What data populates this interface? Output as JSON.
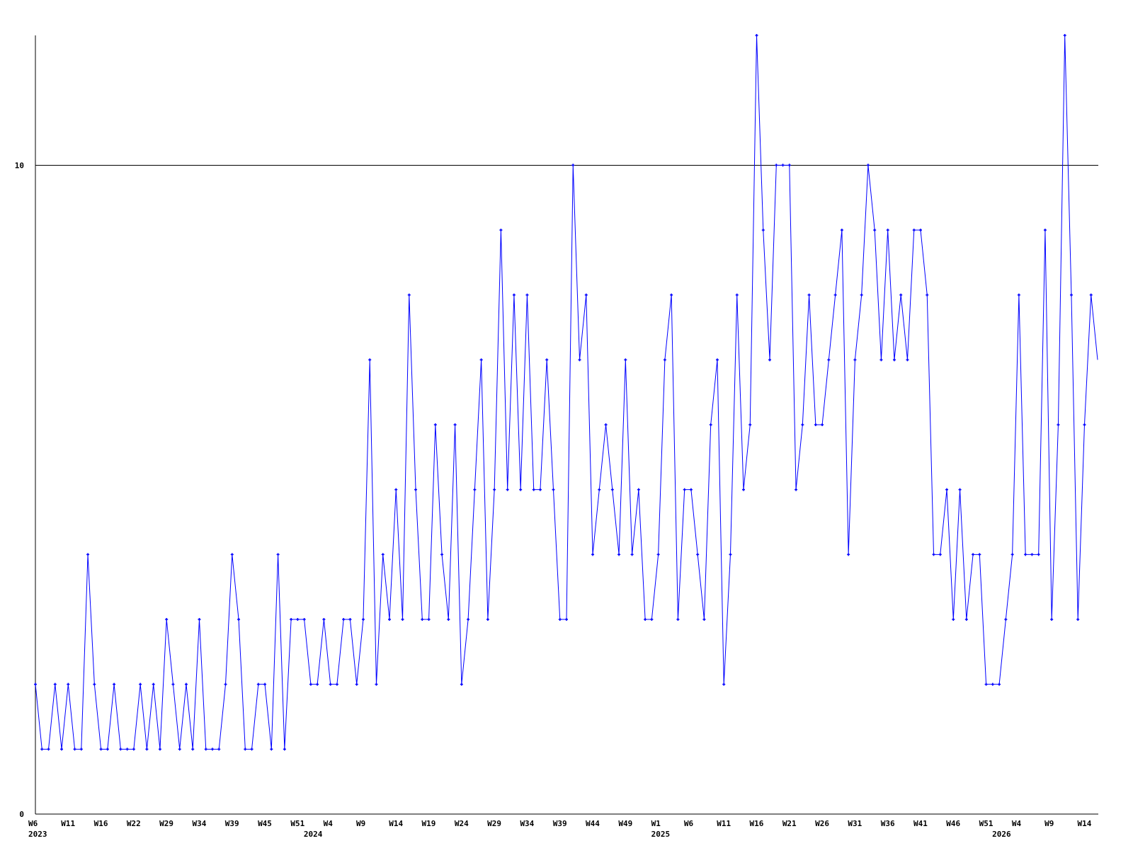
{
  "chart_data": {
    "type": "line",
    "title": "",
    "xlabel": "",
    "ylabel": "",
    "ylim": [
      0,
      12
    ],
    "y_ticks": [
      {
        "value": 0,
        "label": "0"
      },
      {
        "value": 10,
        "label": "10"
      }
    ],
    "reference_lines": [
      10
    ],
    "grid": false,
    "legend": "none",
    "colors": {
      "series": "#0000ff",
      "axis": "#000000"
    },
    "x_ticks": [
      {
        "index": 0,
        "label": "W6"
      },
      {
        "index": 5,
        "label": "W11"
      },
      {
        "index": 10,
        "label": "W16"
      },
      {
        "index": 15,
        "label": "W22"
      },
      {
        "index": 20,
        "label": "W29"
      },
      {
        "index": 25,
        "label": "W34"
      },
      {
        "index": 30,
        "label": "W39"
      },
      {
        "index": 35,
        "label": "W45"
      },
      {
        "index": 40,
        "label": "W51"
      },
      {
        "index": 45,
        "label": "W4"
      },
      {
        "index": 50,
        "label": "W9"
      },
      {
        "index": 55,
        "label": "W14"
      },
      {
        "index": 60,
        "label": "W19"
      },
      {
        "index": 65,
        "label": "W24"
      },
      {
        "index": 70,
        "label": "W29"
      },
      {
        "index": 75,
        "label": "W34"
      },
      {
        "index": 80,
        "label": "W39"
      },
      {
        "index": 85,
        "label": "W44"
      },
      {
        "index": 90,
        "label": "W49"
      },
      {
        "index": 95,
        "label": "W1"
      },
      {
        "index": 100,
        "label": "W6"
      },
      {
        "index": 105,
        "label": "W11"
      },
      {
        "index": 110,
        "label": "W16"
      },
      {
        "index": 115,
        "label": "W21"
      },
      {
        "index": 120,
        "label": "W26"
      },
      {
        "index": 125,
        "label": "W31"
      },
      {
        "index": 130,
        "label": "W36"
      },
      {
        "index": 135,
        "label": "W41"
      },
      {
        "index": 140,
        "label": "W46"
      },
      {
        "index": 145,
        "label": "W51"
      },
      {
        "index": 150,
        "label": "W4"
      },
      {
        "index": 155,
        "label": "W9"
      },
      {
        "index": 160,
        "label": "W14"
      }
    ],
    "year_labels": [
      {
        "index": 0,
        "label": "2023"
      },
      {
        "index": 42,
        "label": "2024"
      },
      {
        "index": 95,
        "label": "2025"
      },
      {
        "index": 147,
        "label": "2026"
      }
    ],
    "series": [
      {
        "values": [
          2,
          1,
          1,
          2,
          1,
          2,
          1,
          1,
          4,
          2,
          1,
          1,
          2,
          1,
          1,
          1,
          2,
          1,
          2,
          1,
          3,
          2,
          1,
          2,
          1,
          3,
          1,
          1,
          1,
          2,
          4,
          3,
          1,
          1,
          2,
          2,
          1,
          4,
          1,
          3,
          3,
          3,
          2,
          2,
          3,
          2,
          2,
          3,
          3,
          2,
          3,
          7,
          2,
          4,
          3,
          5,
          3,
          8,
          5,
          3,
          3,
          6,
          4,
          3,
          6,
          2,
          3,
          5,
          7,
          3,
          5,
          9,
          5,
          8,
          5,
          8,
          5,
          5,
          7,
          5,
          3,
          3,
          10,
          7,
          8,
          4,
          5,
          6,
          5,
          4,
          7,
          4,
          5,
          3,
          3,
          4,
          7,
          8,
          3,
          5,
          5,
          4,
          3,
          6,
          7,
          2,
          4,
          8,
          5,
          6,
          12,
          9,
          7,
          10,
          10,
          10,
          5,
          6,
          8,
          6,
          6,
          7,
          8,
          9,
          4,
          7,
          8,
          10,
          9,
          7,
          9,
          7,
          8,
          7,
          9,
          9,
          8,
          4,
          4,
          5,
          3,
          5,
          3,
          4,
          4,
          2,
          2,
          2,
          3,
          4,
          8,
          4,
          4,
          4,
          9,
          3,
          6,
          12,
          8,
          3,
          6,
          8,
          7
        ]
      }
    ]
  }
}
